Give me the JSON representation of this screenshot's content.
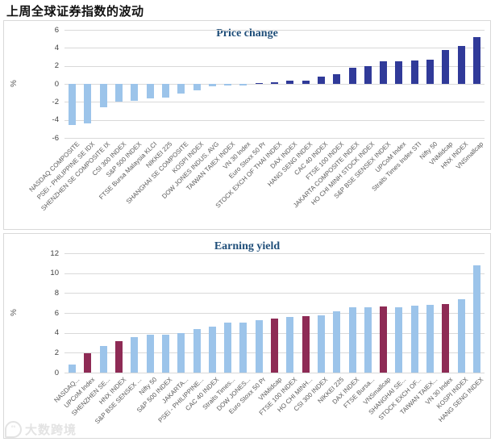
{
  "page_title": "上周全球证券指数的波动",
  "watermark": {
    "icon": "logo",
    "text": "大数跨境"
  },
  "palette": {
    "light": "#9cc4ea",
    "dark": "#303a99",
    "maroon": "#8e2b55",
    "grid": "#d9d9d9",
    "axis_text": "#595959",
    "title_color": "#1f4e79"
  },
  "chart_data": [
    {
      "type": "bar",
      "title": "Price change",
      "xlabel": "",
      "ylabel": "%",
      "ylim": [
        -6,
        6
      ],
      "yticks": [
        6,
        4,
        2,
        0,
        -2,
        -4,
        -6
      ],
      "grid": true,
      "legend": "none",
      "categories": [
        "NASDAQ COMPOSITE",
        "PSEi - PHILIPPINE SE IDX",
        "SHENZHEN SE COMPOSITE IX",
        "CSI 300 INDEX",
        "S&P 500 INDEX",
        "FTSE Bursa Malaysia KLCI",
        "NIKKEI 225",
        "SHANGHAI SE COMPOSITE",
        "KOSPI INDEX",
        "DOW JONES INDUS. AVG",
        "TAIWAN TAIEX INDEX",
        "VN 30 Index",
        "Euro Stoxx 50 Pr",
        "STOCK EXCH OF THAI INDEX",
        "DAX INDEX",
        "HANG SENG INDEX",
        "CAC 40 INDEX",
        "FTSE 100 INDEX",
        "JAKARTA COMPOSITE INDEX",
        "HO CHI MINH STOCK INDEX",
        "S&P BSE SENSEX INDEX",
        "UPCoM Index",
        "Straits Times Index STI",
        "Nifty 50",
        "VNMidcap",
        "HNX INDEX",
        "VNSmallcap"
      ],
      "values": [
        -4.6,
        -4.4,
        -2.6,
        -2.0,
        -1.9,
        -1.6,
        -1.5,
        -1.1,
        -0.7,
        -0.3,
        -0.2,
        -0.15,
        0.1,
        0.2,
        0.4,
        0.4,
        0.85,
        1.1,
        1.8,
        2.0,
        2.5,
        2.5,
        2.6,
        2.65,
        3.8,
        4.25,
        5.2
      ],
      "colors": [
        "light",
        "light",
        "light",
        "light",
        "light",
        "light",
        "light",
        "light",
        "light",
        "light",
        "light",
        "light",
        "dark",
        "dark",
        "dark",
        "dark",
        "dark",
        "dark",
        "dark",
        "dark",
        "dark",
        "dark",
        "dark",
        "dark",
        "dark",
        "dark",
        "dark"
      ]
    },
    {
      "type": "bar",
      "title": "Earning yield",
      "xlabel": "",
      "ylabel": "%",
      "ylim": [
        0,
        12
      ],
      "yticks": [
        12,
        10,
        8,
        6,
        4,
        2,
        0
      ],
      "grid": true,
      "legend": "none",
      "categories": [
        "NASDAQ...",
        "UPCoM Index",
        "SHENZHEN SE...",
        "HNX INDEX",
        "S&P BSE SENSEX ...",
        "Nifty 50",
        "S&P 500 INDEX",
        "JAKARTA...",
        "PSEi - PHILIPPINE...",
        "CAC 40 INDEX",
        "Straits Times...",
        "DOW JONES...",
        "Euro Stoxx 50 Pr",
        "VNMidcap",
        "FTSE 100 INDEX",
        "HO CHI MINH...",
        "CSI 300 INDEX",
        "NIKKEI 225",
        "DAX INDEX",
        "FTSE Bursa...",
        "VNSmallcap",
        "SHANGHAI SE...",
        "STOCK EXCH OF...",
        "TAIWAN TAIEX...",
        "VN 30 Index",
        "KOSPI INDEX",
        "HANG SENG INDEX"
      ],
      "values": [
        0.85,
        1.95,
        2.65,
        3.15,
        3.55,
        3.85,
        3.85,
        4.0,
        4.35,
        4.6,
        5.0,
        5.0,
        5.3,
        5.4,
        5.6,
        5.7,
        5.75,
        6.2,
        6.55,
        6.55,
        6.65,
        6.55,
        6.7,
        6.85,
        6.9,
        7.4,
        10.75
      ],
      "colors": [
        "light",
        "maroon",
        "light",
        "maroon",
        "light",
        "light",
        "light",
        "light",
        "light",
        "light",
        "light",
        "light",
        "light",
        "maroon",
        "light",
        "maroon",
        "light",
        "light",
        "light",
        "light",
        "maroon",
        "light",
        "light",
        "light",
        "maroon",
        "light",
        "light"
      ]
    }
  ]
}
